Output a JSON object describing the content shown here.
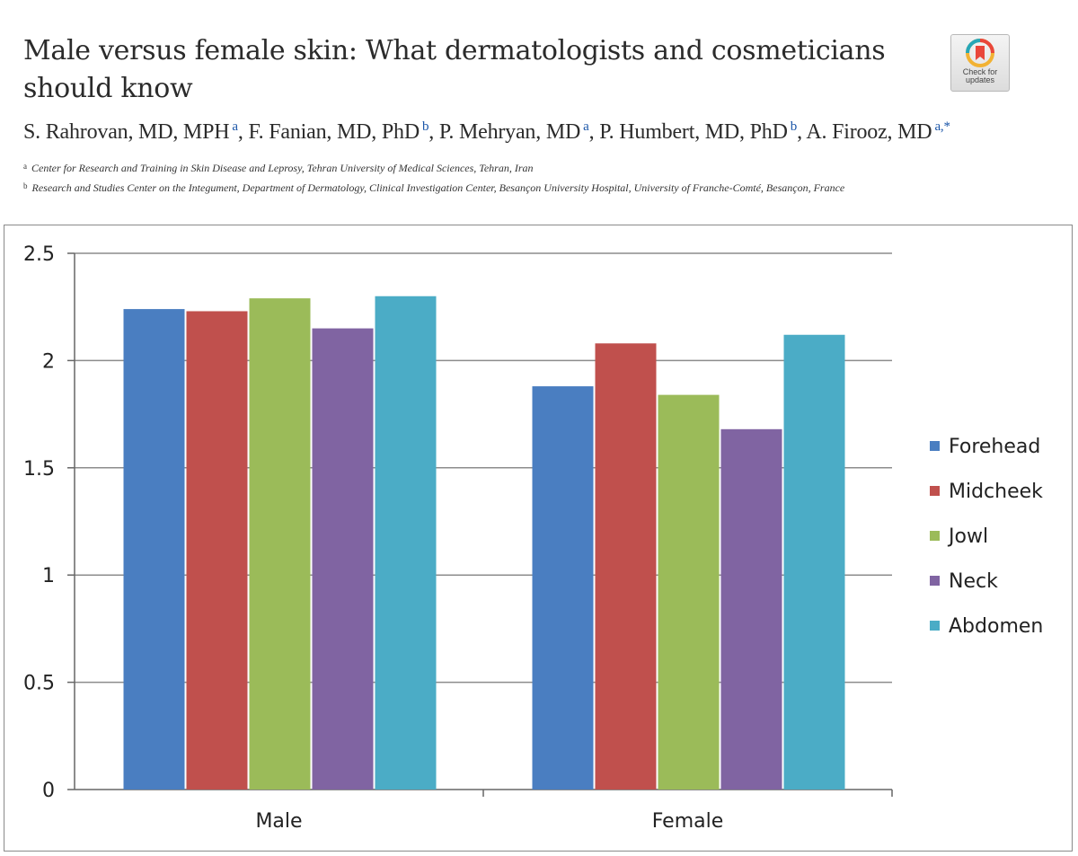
{
  "header": {
    "title_line1": "Male versus female skin: What dermatologists and cosmeticians",
    "title_line2": "should know",
    "badge_line1": "Check for",
    "badge_line2": "updates"
  },
  "authors": [
    {
      "name": "S. Rahrovan, MD, MPH",
      "sup": "a",
      "sep": ","
    },
    {
      "name": "F. Fanian, MD, PhD",
      "sup": "b",
      "sep": ","
    },
    {
      "name": "P. Mehryan, MD",
      "sup": "a",
      "sep": ","
    },
    {
      "name": "P. Humbert, MD, PhD",
      "sup": "b",
      "sep": ","
    },
    {
      "name": "A. Firooz, MD",
      "sup": "a,*",
      "sep": ""
    }
  ],
  "affiliations": [
    {
      "mark": "a",
      "text": "Center for Research and Training in Skin Disease and Leprosy, Tehran University of Medical Sciences, Tehran, Iran"
    },
    {
      "mark": "b",
      "text": "Research and Studies Center on the Integument, Department of Dermatology, Clinical Investigation Center, Besançon University Hospital, University of Franche-Comté, Besançon, France"
    }
  ],
  "chart_data": {
    "type": "bar",
    "title": "",
    "xlabel": "",
    "ylabel": "",
    "categories": [
      "Male",
      "Female"
    ],
    "series": [
      {
        "name": "Forehead",
        "color": "#4a7ec1",
        "values": [
          2.24,
          1.88
        ]
      },
      {
        "name": "Midcheek",
        "color": "#c0504d",
        "values": [
          2.23,
          2.08
        ]
      },
      {
        "name": "Jowl",
        "color": "#9bbb59",
        "values": [
          2.29,
          1.84
        ]
      },
      {
        "name": "Neck",
        "color": "#8064a2",
        "values": [
          2.15,
          1.68
        ]
      },
      {
        "name": "Abdomen",
        "color": "#4bacc6",
        "values": [
          2.3,
          2.12
        ]
      }
    ],
    "ylim": [
      0,
      2.5
    ],
    "yticks": [
      0,
      0.5,
      1,
      1.5,
      2,
      2.5
    ],
    "ytick_labels": [
      "0",
      "0.5",
      "1",
      "1.5",
      "2",
      "2.5"
    ],
    "grid": true,
    "legend_position": "right"
  }
}
